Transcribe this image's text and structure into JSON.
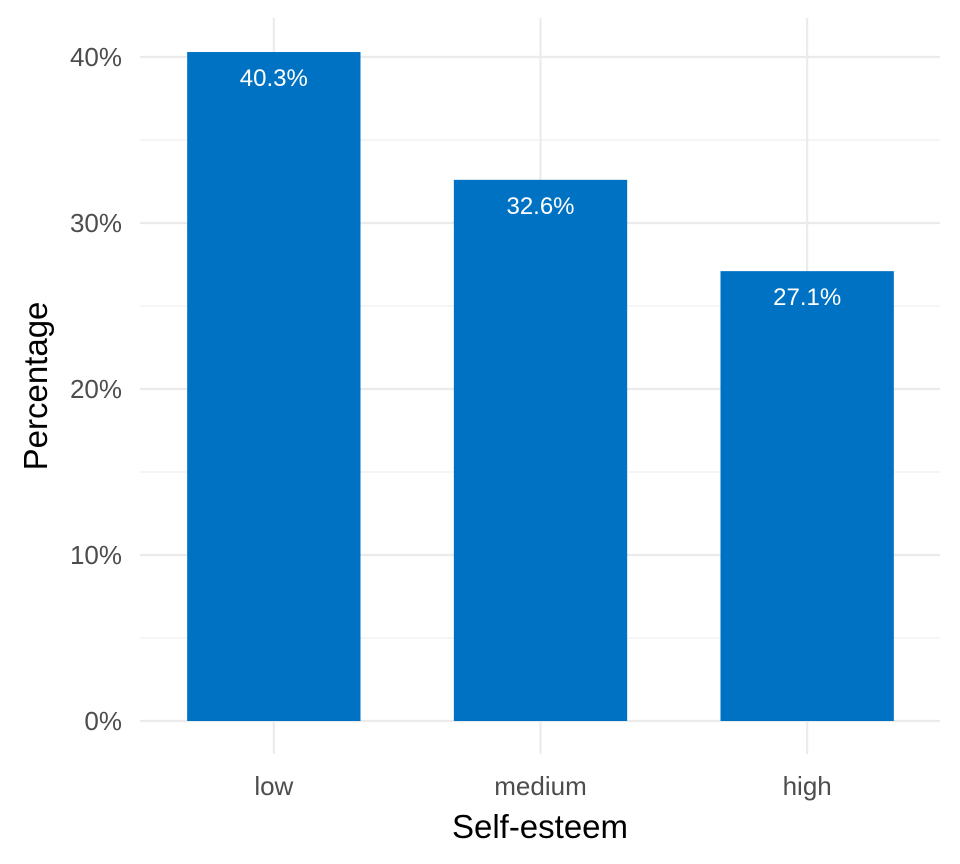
{
  "chart_data": {
    "type": "bar",
    "categories": [
      "low",
      "medium",
      "high"
    ],
    "values": [
      40.3,
      32.6,
      27.1
    ],
    "data_labels": [
      "40.3%",
      "32.6%",
      "27.1%"
    ],
    "xlabel": "Self-esteem",
    "ylabel": "Percentage",
    "ylim": [
      0,
      40.3
    ],
    "y_ticks": [
      0,
      10,
      20,
      30,
      40
    ],
    "y_tick_labels": [
      "0%",
      "10%",
      "20%",
      "30%",
      "40%"
    ],
    "y_minor_ticks": [
      5,
      15,
      25,
      35
    ],
    "bar_color": "#0072C3",
    "grid": true,
    "legend": "none"
  }
}
